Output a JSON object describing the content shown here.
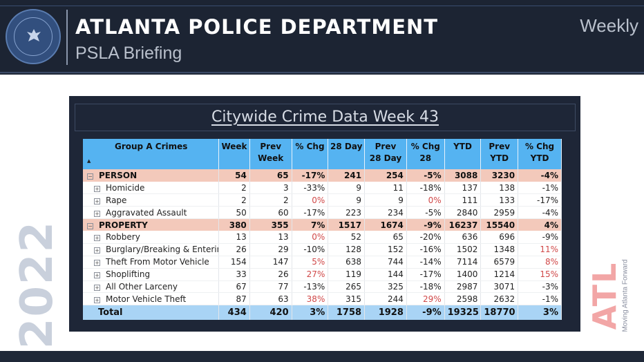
{
  "header": {
    "title": "ATLANTA POLICE DEPARTMENT",
    "subtitle": "PSLA Briefing",
    "period": "Weekly"
  },
  "year": "2022",
  "atl_logo": {
    "text": "ATL",
    "tagline": "Moving Atlanta Forward"
  },
  "panel": {
    "title": "Citywide Crime Data Week 43"
  },
  "table": {
    "headers": {
      "crimes": "Group A Crimes",
      "week": "Week",
      "prev_week": "Prev Week",
      "pct_chg": "% Chg",
      "day28": "28 Day",
      "prev_28": "Prev 28 Day",
      "pct_chg_28": "% Chg 28",
      "ytd": "YTD",
      "prev_ytd": "Prev YTD",
      "pct_chg_ytd": "% Chg YTD"
    },
    "rows": [
      {
        "type": "group",
        "name": "PERSON",
        "week": "54",
        "prev_week": "65",
        "pct_chg": "-17%",
        "day28": "241",
        "prev_28": "254",
        "pct_chg_28": "-5%",
        "ytd": "3088",
        "prev_ytd": "3230",
        "pct_chg_ytd": "-4%"
      },
      {
        "type": "sub",
        "name": "Homicide",
        "week": "2",
        "prev_week": "3",
        "pct_chg": "-33%",
        "day28": "9",
        "prev_28": "11",
        "pct_chg_28": "-18%",
        "ytd": "137",
        "prev_ytd": "138",
        "pct_chg_ytd": "-1%"
      },
      {
        "type": "sub",
        "name": "Rape",
        "week": "2",
        "prev_week": "2",
        "pct_chg": "0%",
        "day28": "9",
        "prev_28": "9",
        "pct_chg_28": "0%",
        "ytd": "111",
        "prev_ytd": "133",
        "pct_chg_ytd": "-17%"
      },
      {
        "type": "sub",
        "name": "Aggravated Assault",
        "week": "50",
        "prev_week": "60",
        "pct_chg": "-17%",
        "day28": "223",
        "prev_28": "234",
        "pct_chg_28": "-5%",
        "ytd": "2840",
        "prev_ytd": "2959",
        "pct_chg_ytd": "-4%"
      },
      {
        "type": "group",
        "name": "PROPERTY",
        "week": "380",
        "prev_week": "355",
        "pct_chg": "7%",
        "day28": "1517",
        "prev_28": "1674",
        "pct_chg_28": "-9%",
        "ytd": "16237",
        "prev_ytd": "15540",
        "pct_chg_ytd": "4%"
      },
      {
        "type": "sub",
        "name": "Robbery",
        "week": "13",
        "prev_week": "13",
        "pct_chg": "0%",
        "day28": "52",
        "prev_28": "65",
        "pct_chg_28": "-20%",
        "ytd": "636",
        "prev_ytd": "696",
        "pct_chg_ytd": "-9%"
      },
      {
        "type": "sub",
        "name": "Burglary/Breaking & Entering",
        "week": "26",
        "prev_week": "29",
        "pct_chg": "-10%",
        "day28": "128",
        "prev_28": "152",
        "pct_chg_28": "-16%",
        "ytd": "1502",
        "prev_ytd": "1348",
        "pct_chg_ytd": "11%"
      },
      {
        "type": "sub",
        "name": "Theft From Motor Vehicle",
        "week": "154",
        "prev_week": "147",
        "pct_chg": "5%",
        "day28": "638",
        "prev_28": "744",
        "pct_chg_28": "-14%",
        "ytd": "7114",
        "prev_ytd": "6579",
        "pct_chg_ytd": "8%"
      },
      {
        "type": "sub",
        "name": "Shoplifting",
        "week": "33",
        "prev_week": "26",
        "pct_chg": "27%",
        "day28": "119",
        "prev_28": "144",
        "pct_chg_28": "-17%",
        "ytd": "1400",
        "prev_ytd": "1214",
        "pct_chg_ytd": "15%"
      },
      {
        "type": "sub",
        "name": "All Other Larceny",
        "week": "67",
        "prev_week": "77",
        "pct_chg": "-13%",
        "day28": "265",
        "prev_28": "325",
        "pct_chg_28": "-18%",
        "ytd": "2987",
        "prev_ytd": "3071",
        "pct_chg_ytd": "-3%"
      },
      {
        "type": "sub",
        "name": "Motor Vehicle Theft",
        "week": "87",
        "prev_week": "63",
        "pct_chg": "38%",
        "day28": "315",
        "prev_28": "244",
        "pct_chg_28": "29%",
        "ytd": "2598",
        "prev_ytd": "2632",
        "pct_chg_ytd": "-1%"
      }
    ],
    "total": {
      "name": "Total",
      "week": "434",
      "prev_week": "420",
      "pct_chg": "3%",
      "day28": "1758",
      "prev_28": "1928",
      "pct_chg_28": "-9%",
      "ytd": "19325",
      "prev_ytd": "18770",
      "pct_chg_ytd": "3%"
    }
  },
  "colors": {
    "header_bg": "#1c2433",
    "table_header": "#55b3f1",
    "group_row": "#f3c9bb",
    "total_row": "#a9d4f5",
    "increase_text": "#d04848"
  }
}
